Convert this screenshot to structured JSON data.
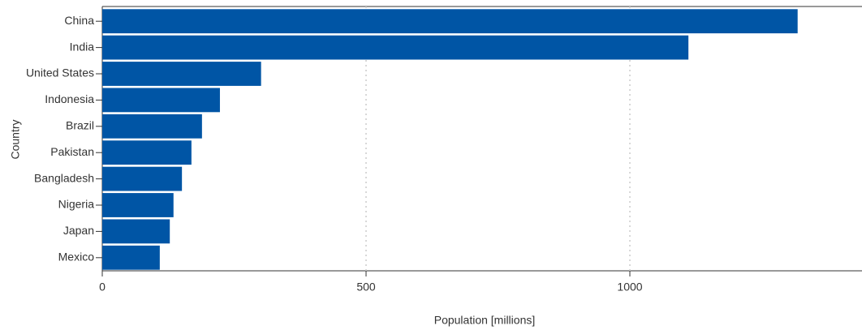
{
  "chart_data": {
    "type": "barh",
    "x_label": "Population [millions]",
    "y_label": "Country",
    "categories": [
      "China",
      "India",
      "United States",
      "Indonesia",
      "Brazil",
      "Pakistan",
      "Bangladesh",
      "Nigeria",
      "Japan",
      "Mexico"
    ],
    "values": [
      1318,
      1111,
      301,
      223,
      189,
      169,
      151,
      135,
      128,
      109
    ],
    "color": "#0055a5",
    "xlim": [
      0,
      1440
    ],
    "xticks": [
      0,
      500,
      1000
    ],
    "grid": true
  }
}
